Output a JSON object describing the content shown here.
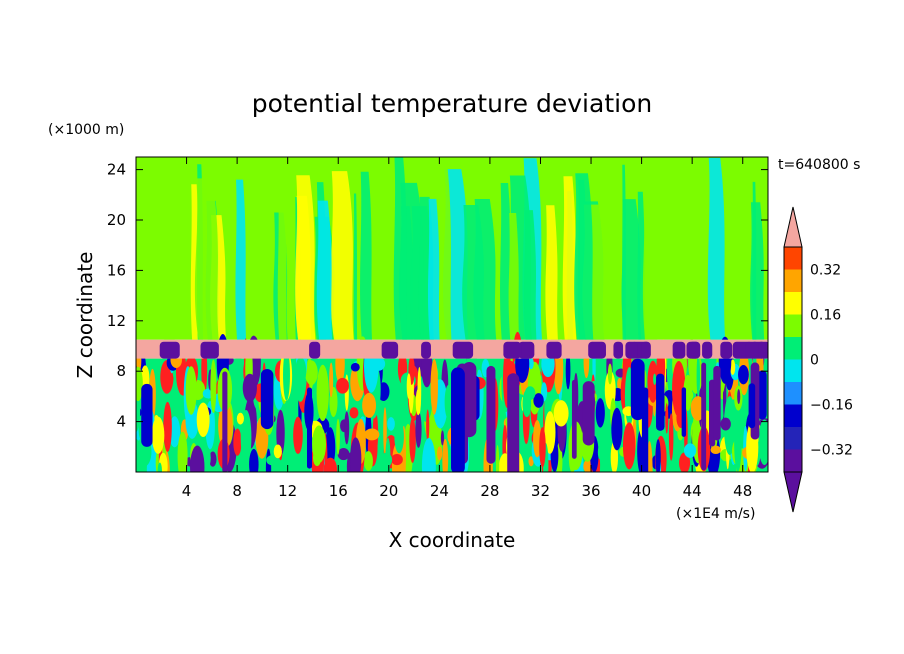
{
  "chart_data": {
    "type": "heatmap",
    "title": "potential temperature deviation",
    "xlabel": "X coordinate",
    "ylabel": "Z coordinate",
    "x_unit": "(×1E4 m/s)",
    "y_unit": "(×1000 m)",
    "time_label": "t=640800 s",
    "xlim": [
      0,
      50
    ],
    "ylim": [
      0,
      25
    ],
    "x_ticks": [
      "4",
      "8",
      "12",
      "16",
      "20",
      "24",
      "28",
      "32",
      "36",
      "40",
      "44",
      "48"
    ],
    "x_tick_values": [
      4,
      8,
      12,
      16,
      20,
      24,
      28,
      32,
      36,
      40,
      44,
      48
    ],
    "y_ticks": [
      "4",
      "8",
      "12",
      "16",
      "20",
      "24"
    ],
    "y_tick_values": [
      4,
      8,
      12,
      16,
      20,
      24
    ],
    "colorbar": {
      "labels": [
        "0.32",
        "0.16",
        "0",
        "−0.16",
        "−0.32"
      ],
      "label_values": [
        0.32,
        0.16,
        0,
        -0.16,
        -0.32
      ],
      "levels": [
        -0.4,
        -0.32,
        -0.24,
        -0.16,
        -0.08,
        0,
        0.08,
        0.16,
        0.24,
        0.32,
        0.4
      ],
      "colors": [
        "#5b0f9e",
        "#2424b8",
        "#0000cd",
        "#1e90ff",
        "#00e5ee",
        "#00ee76",
        "#7cfc00",
        "#ffff00",
        "#ffa500",
        "#ff4500",
        "#ff2020",
        "#f4a6a0"
      ],
      "extend": "both"
    },
    "regions": [
      {
        "name": "upper layer",
        "z_range": [
          10.5,
          25
        ],
        "dominant_values": [
          0,
          0.08
        ],
        "description_color": "#7cfc00"
      },
      {
        "name": "interface band",
        "z_range": [
          9,
          10.5
        ],
        "dominant_values": [
          0.4
        ],
        "description_color": "#f4a6a0"
      },
      {
        "name": "lower turbulent layer",
        "z_range": [
          0,
          9
        ],
        "dominant_values": [
          -0.4,
          0.32
        ]
      }
    ]
  },
  "colors": {
    "upper_green": "#7cfc00",
    "sea_green": "#00ee76",
    "cyan": "#00e5ee",
    "yellow": "#ffff00",
    "salmon": "#f4a6a0",
    "purple": "#5b0f9e",
    "blue": "#0000cd",
    "orange": "#ffa500",
    "red": "#ff2020"
  }
}
